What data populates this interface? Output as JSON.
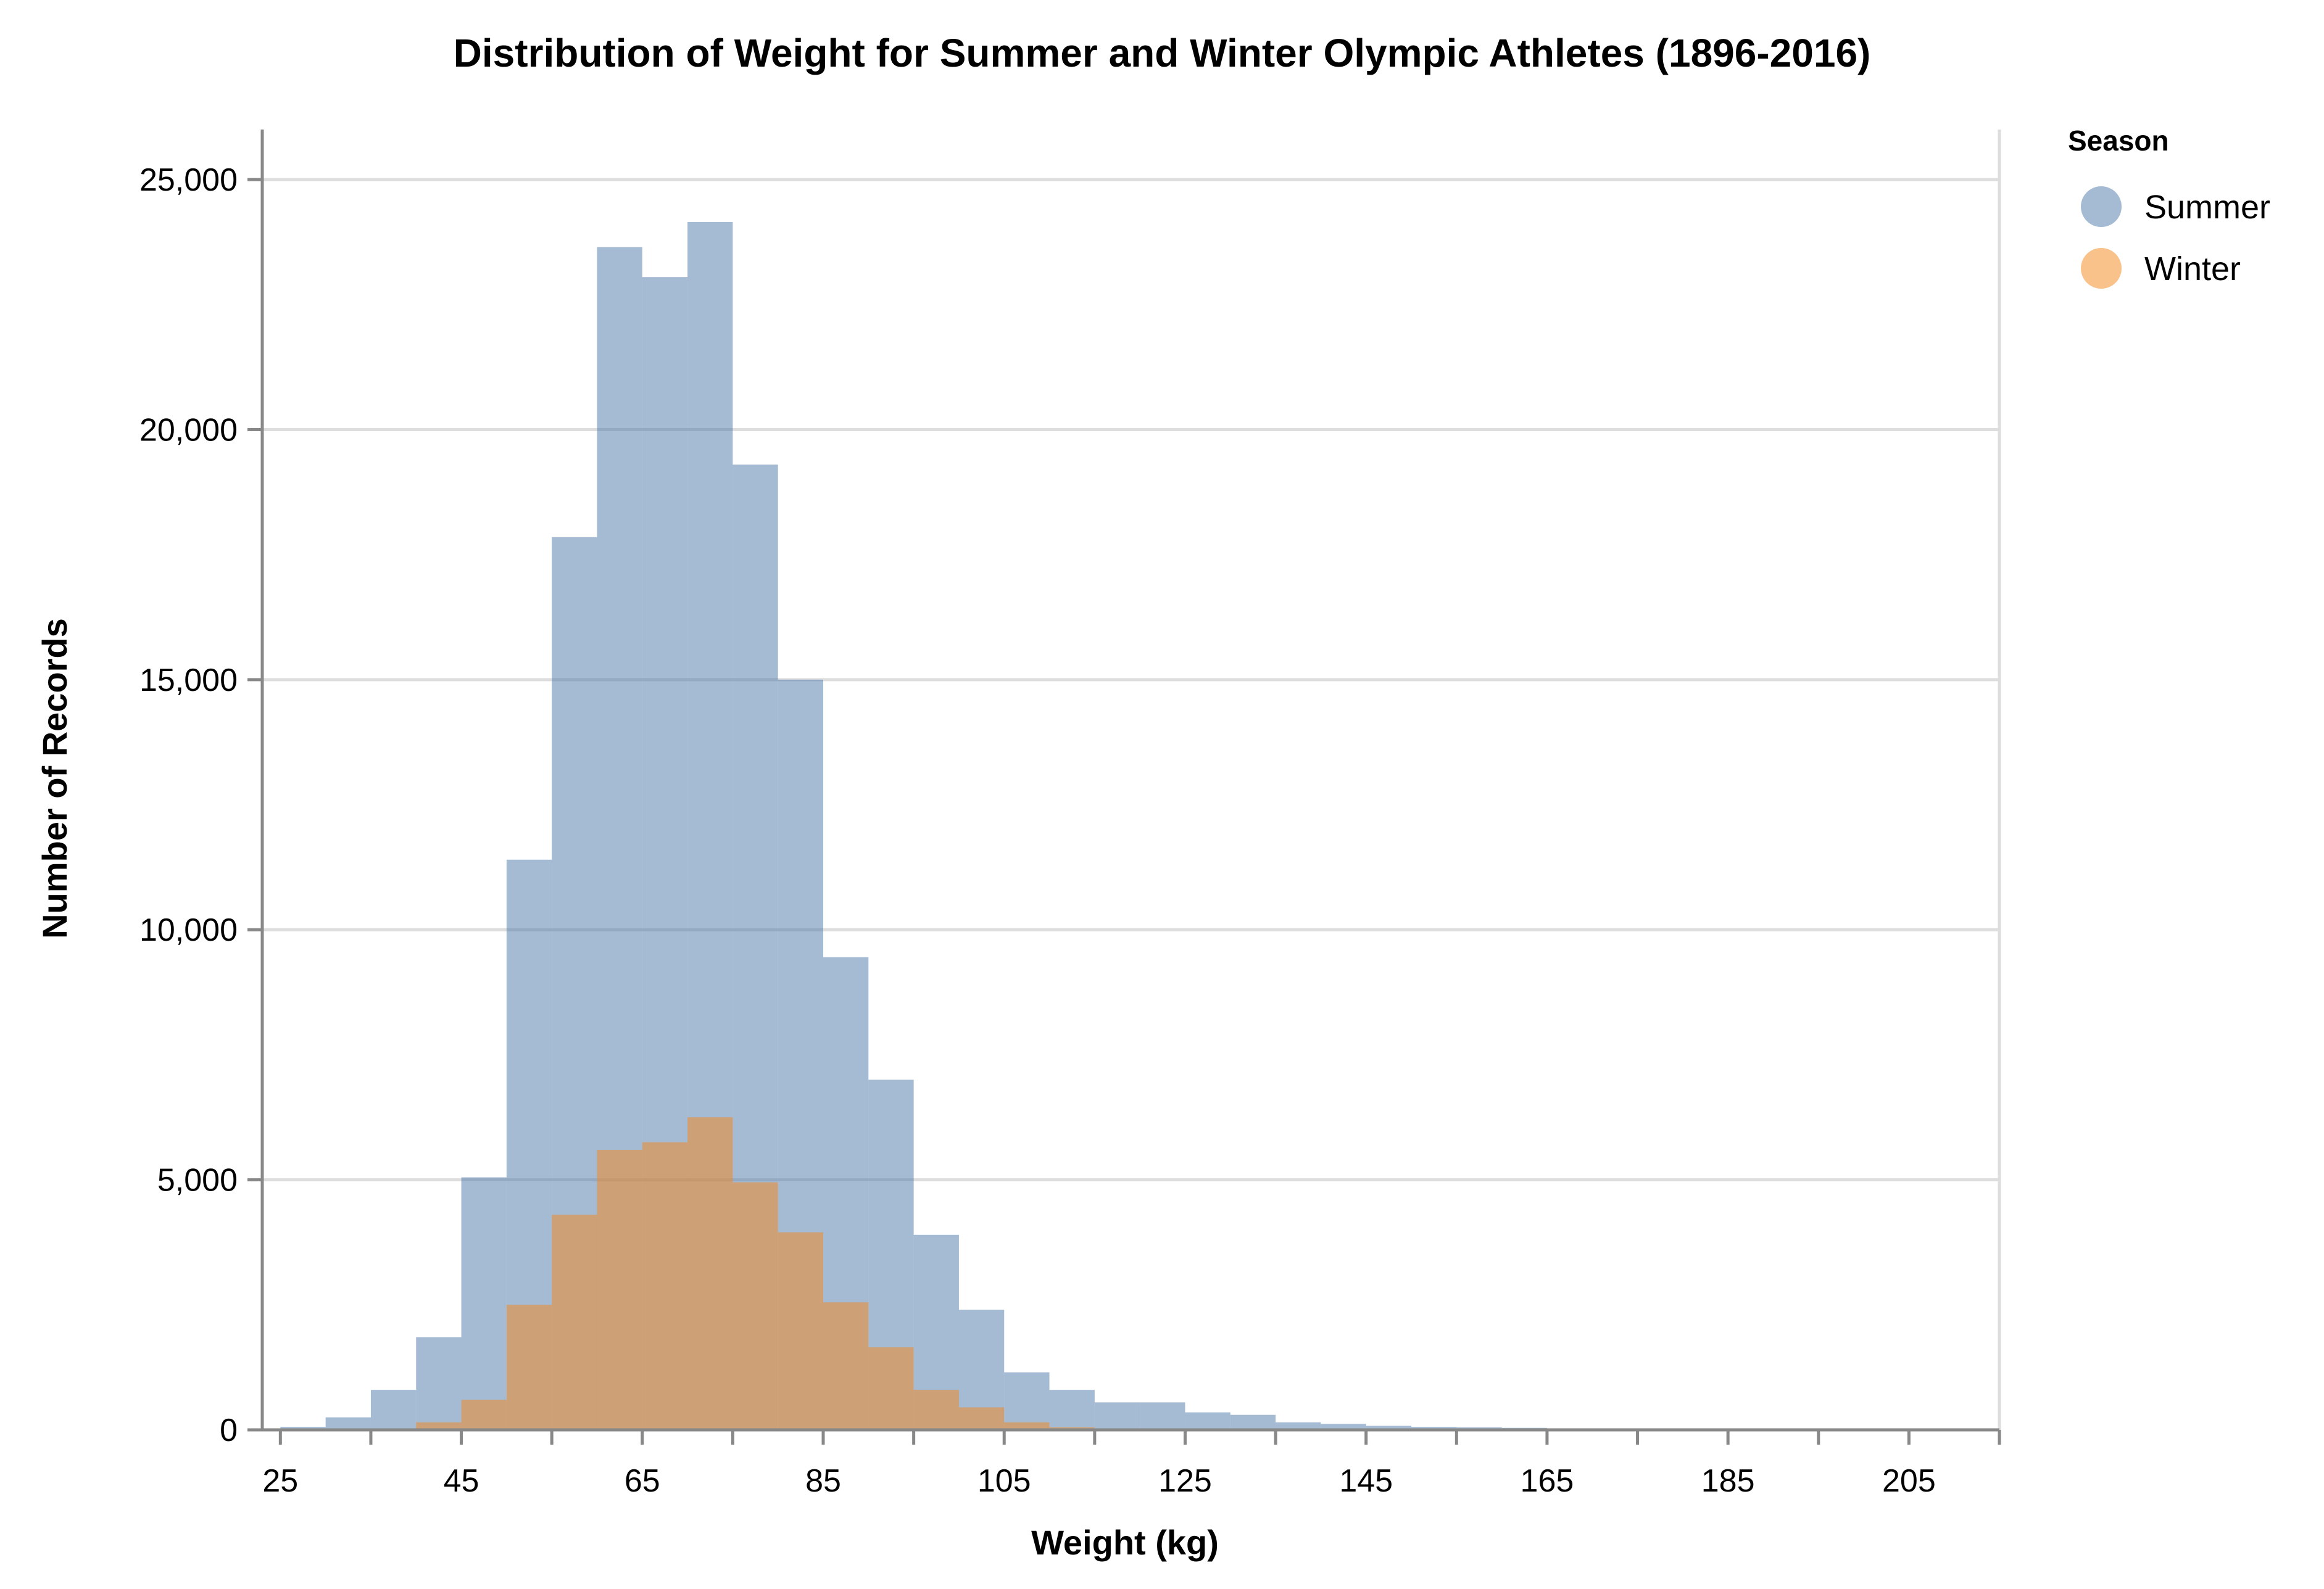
{
  "chart_data": {
    "type": "bar",
    "subtype": "overlaid-histogram",
    "title": "Distribution of Weight for Summer and Winter Olympic Athletes (1896-2016)",
    "xlabel": "Weight (kg)",
    "ylabel": "Number of Records",
    "xlim": [
      23,
      215
    ],
    "ylim": [
      0,
      26000
    ],
    "bin_width": 5,
    "x_ticks": [
      25,
      45,
      65,
      85,
      105,
      125,
      145,
      165,
      185,
      205
    ],
    "x_tick_labels": [
      "25",
      "45",
      "65",
      "85",
      "105",
      "125",
      "145",
      "165",
      "185",
      "205"
    ],
    "y_ticks": [
      0,
      5000,
      10000,
      15000,
      20000,
      25000
    ],
    "y_tick_labels": [
      "0",
      "5,000",
      "10,000",
      "15,000",
      "20,000",
      "25,000"
    ],
    "x_minor_ticks": [
      35,
      55,
      75,
      95,
      115,
      135,
      155,
      175,
      195,
      215
    ],
    "grid": true,
    "legend": {
      "title": "Season",
      "position": "top-right",
      "entries": [
        "Summer",
        "Winter"
      ]
    },
    "series": [
      {
        "name": "Summer",
        "color": "#4C78A8",
        "opacity": 0.5,
        "bin_start": [
          25,
          30,
          35,
          40,
          45,
          50,
          55,
          60,
          65,
          70,
          75,
          80,
          85,
          90,
          95,
          100,
          105,
          110,
          115,
          120,
          125,
          130,
          135,
          140,
          145,
          150,
          155,
          160,
          165,
          170,
          175,
          180,
          185,
          190,
          195,
          200,
          205,
          210
        ],
        "values": [
          60,
          250,
          800,
          1850,
          5050,
          11400,
          17850,
          23650,
          23050,
          24150,
          19300,
          15000,
          9450,
          7000,
          3900,
          2400,
          1150,
          800,
          550,
          550,
          350,
          300,
          150,
          120,
          80,
          60,
          50,
          40,
          25,
          20,
          15,
          10,
          10,
          10,
          5,
          5,
          5,
          5
        ]
      },
      {
        "name": "Winter",
        "color": "#F58518",
        "opacity": 0.5,
        "bin_start": [
          35,
          40,
          45,
          50,
          55,
          60,
          65,
          70,
          75,
          80,
          85,
          90,
          95,
          100,
          105,
          110
        ],
        "values": [
          20,
          150,
          600,
          2500,
          4300,
          5600,
          5750,
          6250,
          4950,
          3950,
          2550,
          1650,
          800,
          450,
          150,
          50
        ]
      }
    ]
  }
}
